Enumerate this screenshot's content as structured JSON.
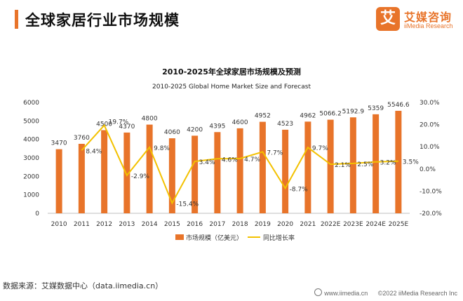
{
  "header": {
    "title": "全球家居行业市场规模",
    "brand_cn": "艾媒咨询",
    "brand_en": "iiMedia Research",
    "brand_mark": "艾",
    "accent_color": "#e8742a"
  },
  "footer": {
    "source": "数据来源：艾媒数据中心（data.iimedia.cn）",
    "site": "www.iimedia.cn",
    "copyright": "©2022  iiMedia Research  Inc"
  },
  "chart_data": {
    "type": "bar",
    "title": "2010-2025年全球家居市场规模及预测",
    "subtitle": "2010-2025 Global Home Market Size and Forecast",
    "categories": [
      "2010",
      "2011",
      "2012",
      "2013",
      "2014",
      "2015",
      "2016",
      "2017",
      "2018",
      "2019",
      "2020",
      "2021",
      "2022E",
      "2023E",
      "2024E",
      "2025E"
    ],
    "series": [
      {
        "name": "市场规模（亿美元）",
        "type": "bar",
        "axis": "left",
        "color": "#e8742a",
        "values": [
          3470,
          3760,
          4500,
          4370,
          4800,
          4060,
          4200,
          4395,
          4600,
          4952,
          4523,
          4962,
          5066.2,
          5192.9,
          5359,
          5546.6
        ],
        "labels": [
          "3470",
          "3760",
          "4500",
          "4370",
          "4800",
          "4060",
          "4200",
          "4395",
          "4600",
          "4952",
          "4523",
          "4962",
          "5066.2",
          "5192.9",
          "5359",
          "5546.6"
        ]
      },
      {
        "name": "同比增长率",
        "type": "line",
        "axis": "right",
        "color": "#f3c100",
        "values": [
          null,
          8.4,
          19.7,
          -2.9,
          9.8,
          -15.4,
          3.4,
          4.6,
          4.7,
          7.7,
          -8.7,
          9.7,
          2.1,
          2.5,
          3.2,
          3.5
        ],
        "labels": [
          "",
          "8.4%",
          "19.7%",
          "-2.9%",
          "9.8%",
          "-15.4%",
          "3.4%",
          "4.6%",
          "4.7%",
          "7.7%",
          "-8.7%",
          "9.7%",
          "2.1%",
          "2.5%",
          "3.2%",
          "3.5%"
        ]
      }
    ],
    "y_left": {
      "min": 0,
      "max": 6000,
      "ticks": [
        "0",
        "1000",
        "2000",
        "3000",
        "4000",
        "5000",
        "6000"
      ]
    },
    "y_right": {
      "min": -20,
      "max": 30,
      "ticks": [
        "-20.0%",
        "-10.0%",
        "0.0%",
        "10.0%",
        "20.0%",
        "30.0%"
      ]
    },
    "grid": false,
    "legend_position": "bottom"
  }
}
